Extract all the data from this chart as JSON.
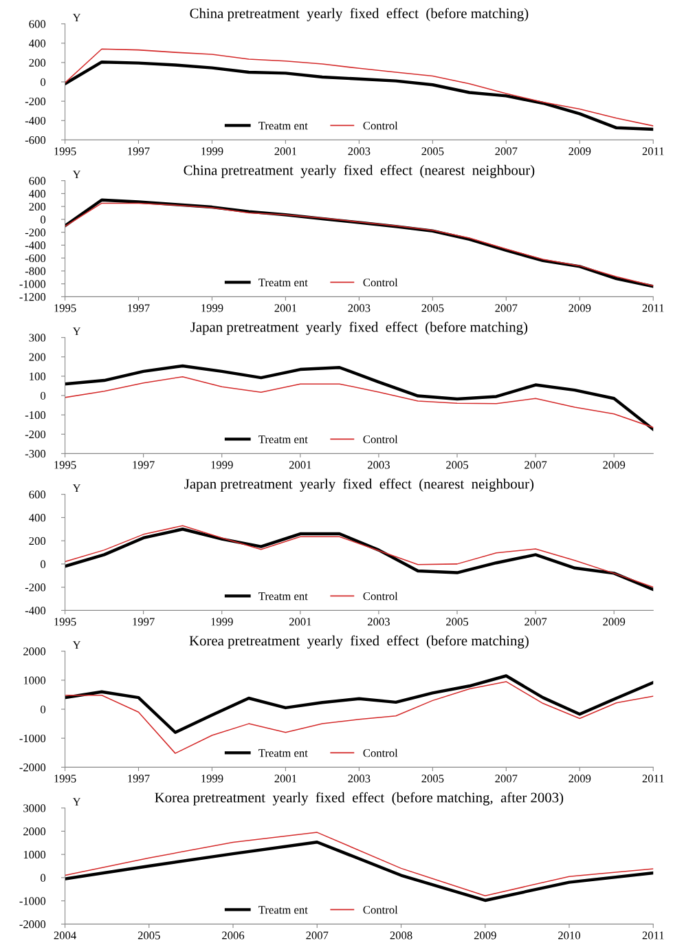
{
  "chart_data": [
    {
      "type": "line",
      "title": "China pretreatment  yearly  fixed  effect  (before matching)",
      "ylabel": "Y",
      "legend": "bottom",
      "grid": false,
      "x": [
        1995,
        1996,
        1997,
        1998,
        1999,
        2000,
        2001,
        2002,
        2003,
        2004,
        2005,
        2006,
        2007,
        2008,
        2009,
        2010,
        2011
      ],
      "xlim": [
        1995,
        2011
      ],
      "xticks": [
        1995,
        1997,
        1999,
        2001,
        2003,
        2005,
        2007,
        2009,
        2011
      ],
      "ylim": [
        -600,
        600
      ],
      "yticks": [
        -600,
        -400,
        -200,
        0,
        200,
        400,
        600
      ],
      "series": [
        {
          "name": "Treatm ent",
          "color": "#000000",
          "values": [
            -20,
            205,
            195,
            175,
            145,
            100,
            90,
            50,
            30,
            10,
            -30,
            -110,
            -145,
            -220,
            -330,
            -475,
            -490
          ]
        },
        {
          "name": "Control",
          "color": "#d42a2a",
          "values": [
            -10,
            340,
            330,
            305,
            285,
            235,
            215,
            185,
            140,
            100,
            60,
            -20,
            -120,
            -210,
            -280,
            -375,
            -455
          ]
        }
      ]
    },
    {
      "type": "line",
      "title": "China pretreatment  yearly  fixed  effect  (nearest  neighbour)",
      "ylabel": "Y",
      "legend": "bottom",
      "grid": false,
      "x": [
        1995,
        1996,
        1997,
        1998,
        1999,
        2000,
        2001,
        2002,
        2003,
        2004,
        2005,
        2006,
        2007,
        2008,
        2009,
        2010,
        2011
      ],
      "xlim": [
        1995,
        2011
      ],
      "xticks": [
        1995,
        1997,
        1999,
        2001,
        2003,
        2005,
        2007,
        2009,
        2011
      ],
      "ylim": [
        -1200,
        600
      ],
      "yticks": [
        -1200,
        -1000,
        -800,
        -600,
        -400,
        -200,
        0,
        200,
        400,
        600
      ],
      "series": [
        {
          "name": "Treatm ent",
          "color": "#000000",
          "values": [
            -100,
            300,
            270,
            230,
            190,
            120,
            70,
            10,
            -50,
            -110,
            -180,
            -310,
            -480,
            -640,
            -730,
            -920,
            -1040
          ]
        },
        {
          "name": "Control",
          "color": "#d42a2a",
          "values": [
            -110,
            250,
            250,
            220,
            180,
            100,
            70,
            20,
            -40,
            -100,
            -170,
            -290,
            -460,
            -620,
            -720,
            -890,
            -1030
          ]
        }
      ]
    },
    {
      "type": "line",
      "title": "Japan pretreatment  yearly  fixed  effect  (before matching)",
      "ylabel": "Y",
      "legend": "bottom",
      "grid": false,
      "x": [
        1995,
        1996,
        1997,
        1998,
        1999,
        2000,
        2001,
        2002,
        2003,
        2004,
        2005,
        2006,
        2007,
        2008,
        2009,
        2010
      ],
      "xlim": [
        1995,
        2010
      ],
      "xticks": [
        1995,
        1997,
        1999,
        2001,
        2003,
        2005,
        2007,
        2009
      ],
      "ylim": [
        -300,
        300
      ],
      "yticks": [
        -300,
        -200,
        -100,
        0,
        100,
        200,
        300
      ],
      "series": [
        {
          "name": "Treatm ent",
          "color": "#000000",
          "values": [
            60,
            78,
            125,
            153,
            125,
            92,
            135,
            145,
            70,
            -2,
            -18,
            -5,
            55,
            28,
            -15,
            -175
          ]
        },
        {
          "name": "Control",
          "color": "#d42a2a",
          "values": [
            -10,
            22,
            65,
            97,
            45,
            17,
            60,
            60,
            18,
            -28,
            -40,
            -42,
            -15,
            -60,
            -95,
            -165
          ]
        }
      ]
    },
    {
      "type": "line",
      "title": "Japan pretreatment  yearly  fixed  effect  (nearest  neighbour)",
      "ylabel": "Y",
      "legend": "bottom",
      "grid": false,
      "x": [
        1995,
        1996,
        1997,
        1998,
        1999,
        2000,
        2001,
        2002,
        2003,
        2004,
        2005,
        2006,
        2007,
        2008,
        2009,
        2010
      ],
      "xlim": [
        1995,
        2010
      ],
      "xticks": [
        1995,
        1997,
        1999,
        2001,
        2003,
        2005,
        2007,
        2009
      ],
      "ylim": [
        -400,
        600
      ],
      "yticks": [
        -400,
        -200,
        0,
        200,
        400,
        600
      ],
      "series": [
        {
          "name": "Treatm ent",
          "color": "#000000",
          "values": [
            -20,
            80,
            225,
            300,
            215,
            150,
            260,
            260,
            120,
            -60,
            -75,
            10,
            80,
            -35,
            -80,
            -220
          ]
        },
        {
          "name": "Control",
          "color": "#d42a2a",
          "values": [
            20,
            120,
            255,
            330,
            225,
            125,
            235,
            235,
            115,
            -5,
            0,
            95,
            130,
            30,
            -80,
            -200
          ]
        }
      ]
    },
    {
      "type": "line",
      "title": "Korea pretreatment  yearly  fixed  effect  (before matching)",
      "ylabel": "Y",
      "legend": "bottom",
      "grid": false,
      "x": [
        1995,
        1996,
        1997,
        1998,
        1999,
        2000,
        2001,
        2002,
        2003,
        2004,
        2005,
        2006,
        2007,
        2008,
        2009,
        2010,
        2011
      ],
      "xlim": [
        1995,
        2011
      ],
      "xticks": [
        1995,
        1997,
        1999,
        2001,
        2003,
        2005,
        2007,
        2009,
        2011
      ],
      "ylim": [
        -2000,
        2000
      ],
      "yticks": [
        -2000,
        -1000,
        0,
        1000,
        2000
      ],
      "series": [
        {
          "name": "Treatm ent",
          "color": "#000000",
          "values": [
            400,
            600,
            400,
            -800,
            -200,
            380,
            50,
            230,
            360,
            240,
            560,
            800,
            1150,
            400,
            -170,
            380,
            920
          ]
        },
        {
          "name": "Control",
          "color": "#d42a2a",
          "values": [
            480,
            480,
            -100,
            -1520,
            -900,
            -500,
            -800,
            -500,
            -350,
            -230,
            300,
            700,
            950,
            200,
            -320,
            220,
            450
          ]
        }
      ]
    },
    {
      "type": "line",
      "title": "Korea pretreatment  yearly  fixed  effect  (before matching,  after 2003)",
      "ylabel": "Y",
      "legend": "bottom",
      "grid": false,
      "x": [
        2004,
        2005,
        2006,
        2007,
        2008,
        2009,
        2010,
        2011
      ],
      "xlim": [
        2004,
        2011
      ],
      "xticks": [
        2004,
        2005,
        2006,
        2007,
        2008,
        2009,
        2010,
        2011
      ],
      "ylim": [
        -2000,
        3000
      ],
      "yticks": [
        -2000,
        -1000,
        0,
        1000,
        2000,
        3000
      ],
      "series": [
        {
          "name": "Treatm ent",
          "color": "#000000",
          "values": [
            -50,
            500,
            1030,
            1530,
            100,
            -980,
            -200,
            200
          ]
        },
        {
          "name": "Control",
          "color": "#d42a2a",
          "values": [
            100,
            850,
            1520,
            1950,
            400,
            -780,
            50,
            380
          ]
        }
      ]
    }
  ]
}
